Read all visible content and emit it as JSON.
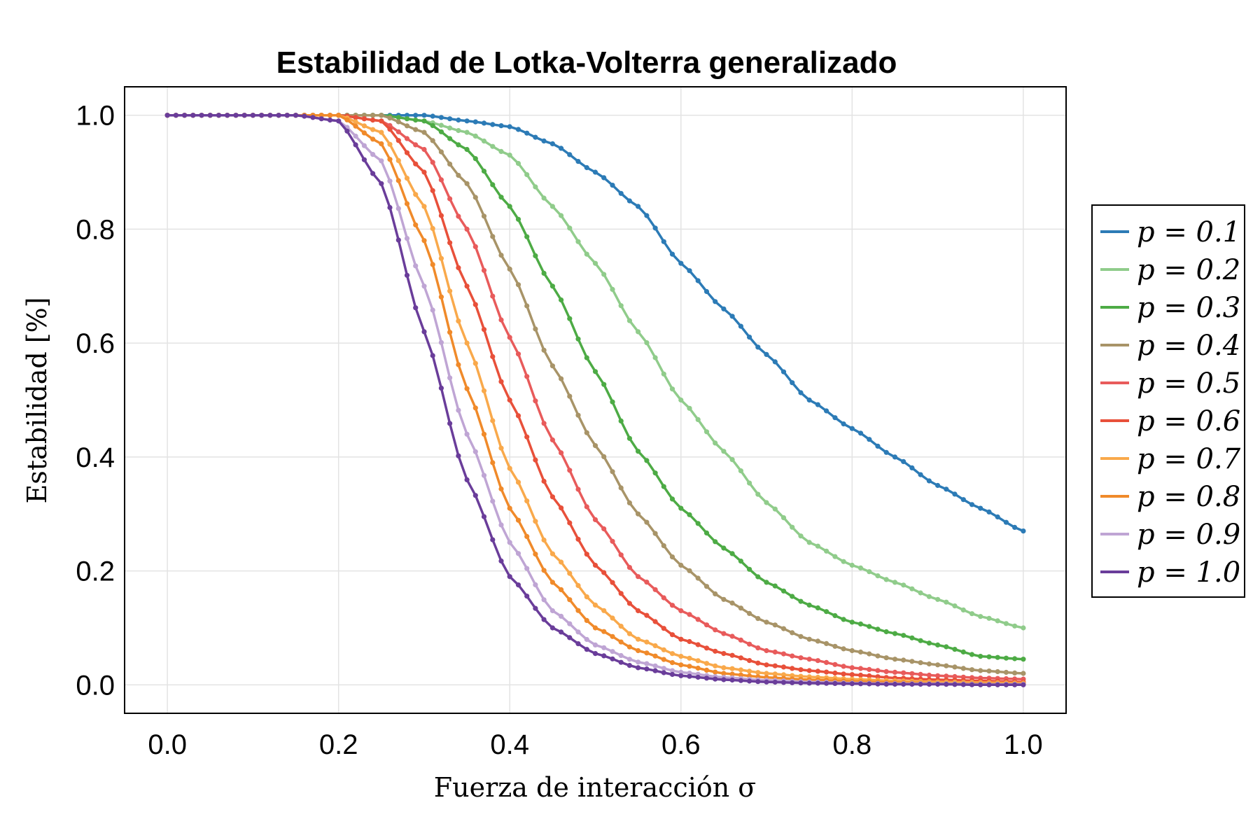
{
  "chart_data": {
    "type": "line",
    "title": "Estabilidad de Lotka-Volterra generalizado",
    "xlabel": "Fuerza de interacción σ",
    "ylabel": "Estabilidad [%]",
    "xlim": [
      -0.05,
      1.05
    ],
    "ylim": [
      -0.05,
      1.05
    ],
    "xticks": [
      "0.0",
      "0.2",
      "0.4",
      "0.6",
      "0.8",
      "1.0"
    ],
    "yticks": [
      "0.0",
      "0.2",
      "0.4",
      "0.6",
      "0.8",
      "1.0"
    ],
    "grid": true,
    "legend_position": "right",
    "x": [
      0.0,
      0.1,
      0.15,
      0.2,
      0.25,
      0.3,
      0.35,
      0.4,
      0.45,
      0.5,
      0.55,
      0.6,
      0.65,
      0.7,
      0.75,
      0.8,
      0.85,
      0.9,
      0.95,
      1.0
    ],
    "series": [
      {
        "name": "p = 0.1",
        "color": "#2c7bb6",
        "values": [
          1.0,
          1.0,
          1.0,
          1.0,
          1.0,
          1.0,
          0.99,
          0.98,
          0.95,
          0.9,
          0.84,
          0.74,
          0.66,
          0.58,
          0.5,
          0.45,
          0.4,
          0.35,
          0.31,
          0.27
        ]
      },
      {
        "name": "p = 0.2",
        "color": "#90cc8b",
        "values": [
          1.0,
          1.0,
          1.0,
          1.0,
          1.0,
          0.99,
          0.97,
          0.93,
          0.84,
          0.74,
          0.62,
          0.5,
          0.41,
          0.32,
          0.25,
          0.21,
          0.18,
          0.15,
          0.12,
          0.1
        ]
      },
      {
        "name": "p = 0.3",
        "color": "#4dab45",
        "values": [
          1.0,
          1.0,
          1.0,
          1.0,
          1.0,
          0.99,
          0.94,
          0.84,
          0.7,
          0.55,
          0.41,
          0.31,
          0.24,
          0.18,
          0.14,
          0.11,
          0.09,
          0.07,
          0.05,
          0.045
        ]
      },
      {
        "name": "p = 0.4",
        "color": "#a89468",
        "values": [
          1.0,
          1.0,
          1.0,
          1.0,
          1.0,
          0.97,
          0.88,
          0.73,
          0.56,
          0.42,
          0.3,
          0.21,
          0.15,
          0.11,
          0.08,
          0.06,
          0.045,
          0.035,
          0.025,
          0.02
        ]
      },
      {
        "name": "p = 0.5",
        "color": "#e85b5b",
        "values": [
          1.0,
          1.0,
          1.0,
          1.0,
          0.99,
          0.94,
          0.8,
          0.61,
          0.43,
          0.29,
          0.19,
          0.13,
          0.09,
          0.06,
          0.045,
          0.03,
          0.022,
          0.016,
          0.012,
          0.01
        ]
      },
      {
        "name": "p = 0.6",
        "color": "#e8503a",
        "values": [
          1.0,
          1.0,
          1.0,
          1.0,
          0.99,
          0.9,
          0.7,
          0.5,
          0.33,
          0.21,
          0.13,
          0.08,
          0.055,
          0.035,
          0.025,
          0.018,
          0.012,
          0.009,
          0.007,
          0.005
        ]
      },
      {
        "name": "p = 0.7",
        "color": "#f9a94b",
        "values": [
          1.0,
          1.0,
          1.0,
          1.0,
          0.97,
          0.84,
          0.6,
          0.38,
          0.23,
          0.14,
          0.08,
          0.05,
          0.03,
          0.02,
          0.014,
          0.01,
          0.007,
          0.005,
          0.004,
          0.003
        ]
      },
      {
        "name": "p = 0.8",
        "color": "#f08a2a",
        "values": [
          1.0,
          1.0,
          1.0,
          1.0,
          0.95,
          0.78,
          0.52,
          0.31,
          0.18,
          0.1,
          0.06,
          0.035,
          0.02,
          0.013,
          0.009,
          0.006,
          0.004,
          0.003,
          0.002,
          0.002
        ]
      },
      {
        "name": "p = 0.9",
        "color": "#bfa5d4",
        "values": [
          1.0,
          1.0,
          1.0,
          0.99,
          0.92,
          0.7,
          0.44,
          0.25,
          0.13,
          0.07,
          0.04,
          0.022,
          0.013,
          0.008,
          0.005,
          0.003,
          0.002,
          0.002,
          0.001,
          0.001
        ]
      },
      {
        "name": "p = 1.0",
        "color": "#6a3d9a",
        "values": [
          1.0,
          1.0,
          1.0,
          0.99,
          0.88,
          0.62,
          0.36,
          0.19,
          0.1,
          0.055,
          0.03,
          0.016,
          0.009,
          0.005,
          0.003,
          0.002,
          0.001,
          0.001,
          0.0,
          0.0
        ]
      }
    ]
  }
}
